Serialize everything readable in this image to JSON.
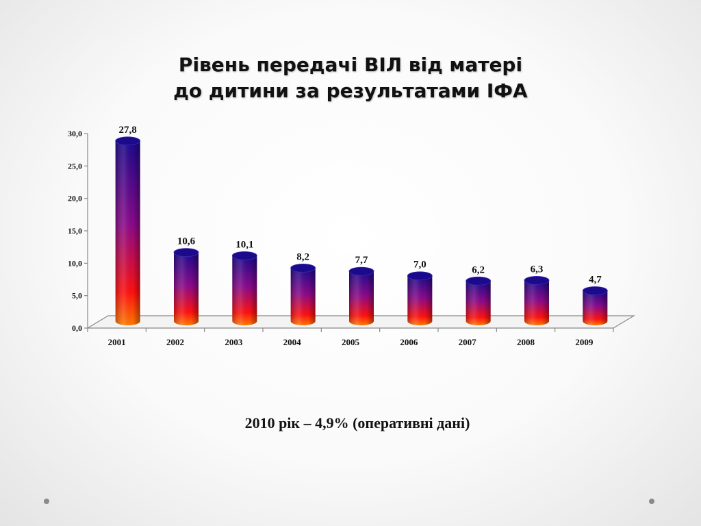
{
  "slide": {
    "title_line1": "Рівень передачі ВІЛ від матері",
    "title_line2": "до дитини за результатами ІФА",
    "note": "2010 рік – 4,9% (оперативні дані)"
  },
  "colors": {
    "bar_top": "#1c0a8c",
    "bar_mid": "#8a0a8a",
    "bar_low": "#ff1010",
    "bar_bottom": "#ff7a00",
    "axis": "#888888"
  },
  "chart_data": {
    "type": "bar",
    "style": "3d-cylinder",
    "categories": [
      "2001",
      "2002",
      "2003",
      "2004",
      "2005",
      "2006",
      "2007",
      "2008",
      "2009"
    ],
    "values": [
      27.8,
      10.6,
      10.1,
      8.2,
      7.7,
      7.0,
      6.2,
      6.3,
      4.7
    ],
    "value_labels": [
      "27,8",
      "10,6",
      "10,1",
      "8,2",
      "7,7",
      "7,0",
      "6,2",
      "6,3",
      "4,7"
    ],
    "y_ticks": [
      0,
      5,
      10,
      15,
      20,
      25,
      30
    ],
    "y_tick_labels": [
      "0,0",
      "5,0",
      "10,0",
      "15,0",
      "20,0",
      "25,0",
      "30,0"
    ],
    "ylim": [
      0,
      30
    ],
    "grid": false,
    "legend": "none"
  }
}
